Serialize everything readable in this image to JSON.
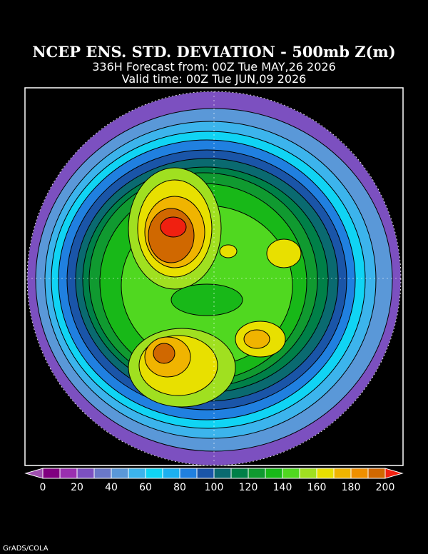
{
  "header": {
    "title": "NCEP ENS. STD. DEVIATION - 500mb Z(m)",
    "forecast": "336H Forecast from: 00Z Tue MAY,26 2026",
    "valid": "Valid time: 00Z Tue JUN,09 2026"
  },
  "colorbar": {
    "ticks": [
      0,
      20,
      40,
      60,
      80,
      100,
      120,
      140,
      160,
      180,
      200
    ],
    "under_color": "#a050b0",
    "colors": [
      "#800080",
      "#9a30b0",
      "#7c50c0",
      "#6a78c8",
      "#5a98d8",
      "#3cb4ec",
      "#10d4f4",
      "#1cb0f0",
      "#2080e0",
      "#1a55a8",
      "#0a6a70",
      "#008048",
      "#109a30",
      "#18b818",
      "#50d820",
      "#a0e020",
      "#e8e000",
      "#f0b400",
      "#f09000",
      "#d06800"
    ],
    "over_color": "#f02010"
  },
  "footer": "GrADS/COLA"
}
